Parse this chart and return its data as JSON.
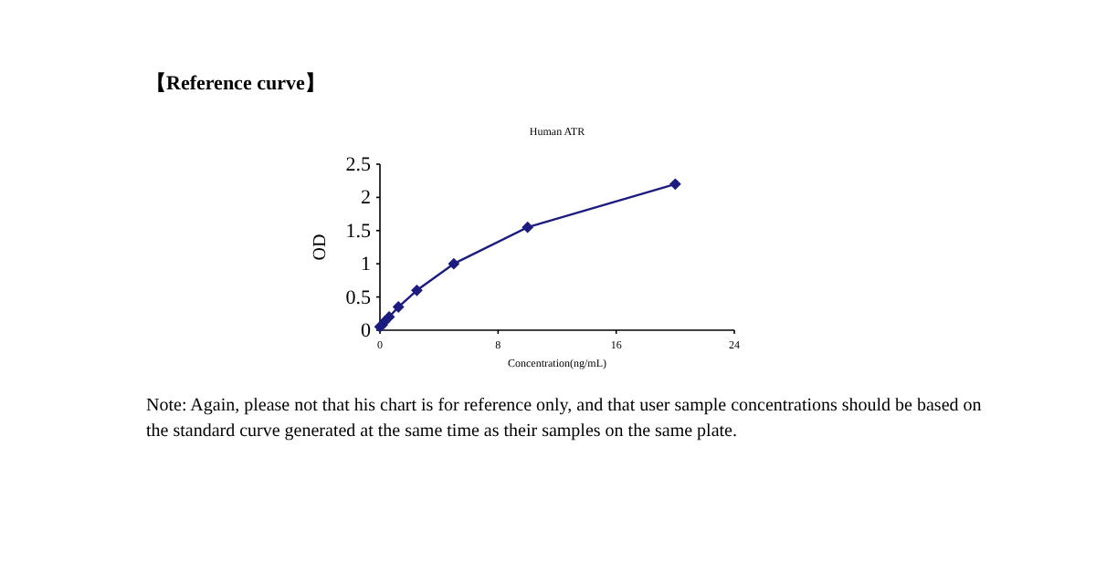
{
  "chart_data": {
    "type": "line",
    "title": "Human ATR",
    "xlabel": "Concentration(ng/mL)",
    "ylabel": "OD",
    "annotations": [
      "【Reference curve】",
      "Note: Again, please not that his chart is for reference only, and that user sample concentrations should be based on the standard curve generated at the same time as their samples on the same plate."
    ],
    "x": [
      0,
      0.156,
      0.312,
      0.625,
      1.25,
      2.5,
      5,
      10,
      20
    ],
    "series": [
      {
        "color": "#1c1c80",
        "values": [
          0.05,
          0.08,
          0.13,
          0.2,
          0.35,
          0.6,
          1.0,
          1.55,
          2.2
        ]
      }
    ],
    "xlim": [
      0,
      24
    ],
    "xticks": [
      0,
      8,
      16,
      24
    ],
    "ylim": [
      0,
      2.5
    ],
    "yticks": [
      0,
      0.5,
      1,
      1.5,
      2,
      2.5
    ],
    "grid": false,
    "marker": "diamond",
    "line_style": "solid"
  }
}
